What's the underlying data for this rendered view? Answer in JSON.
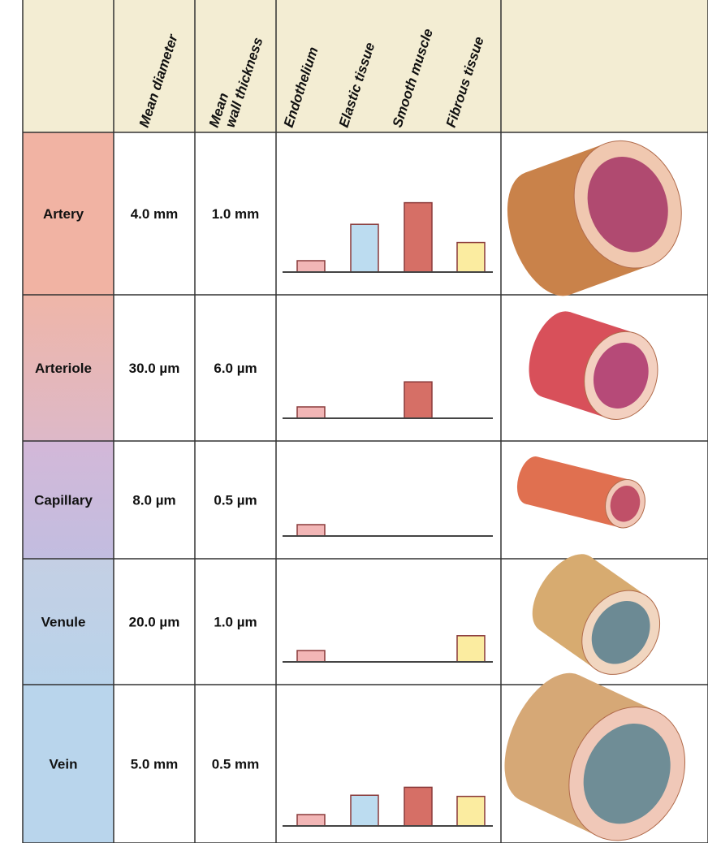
{
  "headers": [
    [
      "Mean diameter"
    ],
    [
      "Mean",
      "wall thickness"
    ],
    [
      "Endothelium"
    ],
    [
      "Elastic tissue"
    ],
    [
      "Smooth muscle"
    ],
    [
      "Fibrous tissue"
    ]
  ],
  "rows": [
    {
      "name": "Artery",
      "diameter": "4.0 mm",
      "wall": "1.0 mm",
      "tissue": [
        1,
        4.2,
        6.1,
        2.6
      ]
    },
    {
      "name": "Arteriole",
      "diameter": "30.0 µm",
      "wall": "6.0 µm",
      "tissue": [
        1,
        null,
        3.2,
        null
      ]
    },
    {
      "name": "Capillary",
      "diameter": "8.0 µm",
      "wall": "0.5 µm",
      "tissue": [
        1,
        null,
        null,
        null
      ]
    },
    {
      "name": "Venule",
      "diameter": "20.0 µm",
      "wall": "1.0 µm",
      "tissue": [
        1,
        null,
        null,
        2.3
      ]
    },
    {
      "name": "Vein",
      "diameter": "5.0 mm",
      "wall": "0.5 mm",
      "tissue": [
        1,
        2.7,
        3.4,
        2.6
      ]
    }
  ]
}
